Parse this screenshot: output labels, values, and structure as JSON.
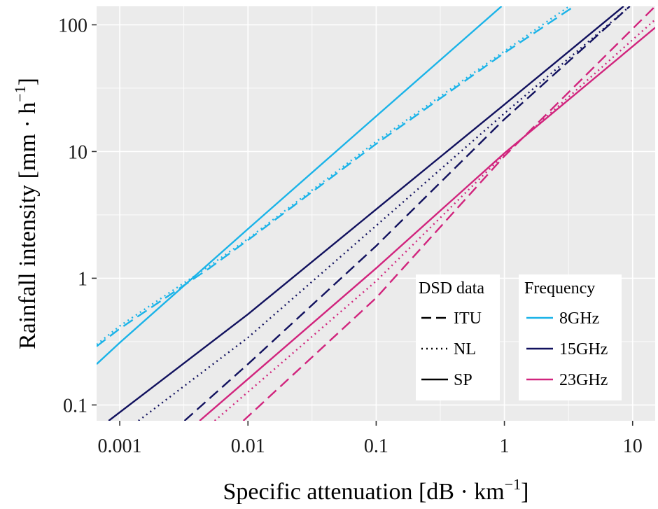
{
  "chart_data": {
    "type": "line",
    "x_scale": "log",
    "y_scale": "log",
    "xlim": [
      0.00066,
      15
    ],
    "ylim": [
      0.075,
      140
    ],
    "x_ticks": [
      0.001,
      0.01,
      0.1,
      1,
      10
    ],
    "x_tick_labels": [
      "0.001",
      "0.01",
      "0.1",
      "1",
      "10"
    ],
    "y_ticks": [
      0.1,
      1,
      10,
      100
    ],
    "y_tick_labels": [
      "0.1",
      "1",
      "10",
      "100"
    ],
    "xlabel": {
      "main": "Specific attenuation [dB · km",
      "sup": "−1",
      "close": "]"
    },
    "ylabel": {
      "main": "Rainfall intensity [mm · h",
      "sup": "−1",
      "close": "]"
    },
    "grid": true,
    "legend_placement": "bottom-right",
    "legend": {
      "linetype_title": "DSD data",
      "linetypes": [
        {
          "label": "ITU",
          "style": "dashed"
        },
        {
          "label": "NL",
          "style": "dotted"
        },
        {
          "label": "SP",
          "style": "solid"
        }
      ],
      "color_title": "Frequency",
      "colors": [
        {
          "label": "8GHz",
          "color": "#1ab3e8"
        },
        {
          "label": "15GHz",
          "color": "#11115e"
        },
        {
          "label": "23GHz",
          "color": "#d1247d"
        }
      ]
    },
    "series": [
      {
        "frequency": "8GHz",
        "dsd": "ITU",
        "color": "#1ab3e8",
        "style": "dashed",
        "x": [
          0.00066,
          0.001,
          0.005,
          0.01,
          0.1,
          1,
          3.5
        ],
        "y": [
          0.29,
          0.4,
          1.2,
          2.0,
          11.5,
          60,
          140
        ]
      },
      {
        "frequency": "8GHz",
        "dsd": "NL",
        "color": "#1ab3e8",
        "style": "dotted",
        "x": [
          0.00066,
          0.001,
          0.005,
          0.01,
          0.1,
          1,
          3.2
        ],
        "y": [
          0.3,
          0.42,
          1.25,
          2.05,
          12,
          62,
          140
        ]
      },
      {
        "frequency": "8GHz",
        "dsd": "SP",
        "color": "#1ab3e8",
        "style": "solid",
        "x": [
          0.00066,
          0.001,
          0.01,
          0.1,
          0.95
        ],
        "y": [
          0.21,
          0.31,
          2.45,
          19,
          140
        ]
      },
      {
        "frequency": "15GHz",
        "dsd": "ITU",
        "color": "#11115e",
        "style": "dashed",
        "x": [
          0.0032,
          0.01,
          0.1,
          1,
          9.5
        ],
        "y": [
          0.075,
          0.21,
          1.8,
          18,
          140
        ]
      },
      {
        "frequency": "15GHz",
        "dsd": "NL",
        "color": "#11115e",
        "style": "dotted",
        "x": [
          0.0014,
          0.01,
          0.1,
          1,
          9.5
        ],
        "y": [
          0.075,
          0.34,
          2.6,
          20,
          140
        ]
      },
      {
        "frequency": "15GHz",
        "dsd": "SP",
        "color": "#11115e",
        "style": "solid",
        "x": [
          0.00082,
          0.01,
          0.1,
          1,
          8.5
        ],
        "y": [
          0.075,
          0.52,
          3.5,
          23.5,
          140
        ]
      },
      {
        "frequency": "23GHz",
        "dsd": "ITU",
        "color": "#d1247d",
        "style": "dashed",
        "x": [
          0.0092,
          0.1,
          1,
          15
        ],
        "y": [
          0.075,
          0.7,
          9.2,
          140
        ]
      },
      {
        "frequency": "23GHz",
        "dsd": "NL",
        "color": "#d1247d",
        "style": "dotted",
        "x": [
          0.0055,
          0.1,
          1,
          15
        ],
        "y": [
          0.075,
          0.95,
          9.5,
          110
        ]
      },
      {
        "frequency": "23GHz",
        "dsd": "SP",
        "color": "#d1247d",
        "style": "solid",
        "x": [
          0.0042,
          0.1,
          1,
          15
        ],
        "y": [
          0.075,
          1.2,
          9.7,
          95
        ]
      }
    ]
  }
}
